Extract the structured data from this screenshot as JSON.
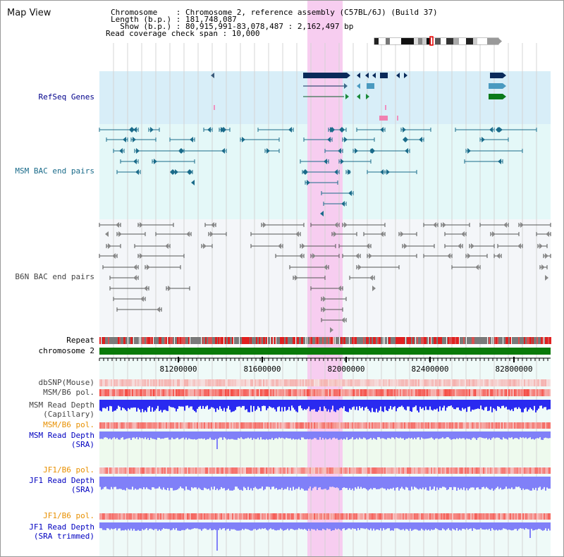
{
  "app": {
    "title": "Map View"
  },
  "info": {
    "chromosome_line": "Chromosome    : Chromosome 2, reference assembly (C57BL/6J) (Build 37)",
    "length_line": "Length (b.p.) : 181,748,087",
    "show_line": "  Show (b.p.) : 80,915,991-83,078,487 : 2,162,497 bp",
    "coverage_line": "Read coverage check span : 10,000"
  },
  "tracks": {
    "refseq": {
      "label": "RefSeq Genes",
      "color": "#00008b"
    },
    "msm_bac": {
      "label": "MSM BAC end pairs",
      "color": "#1a6b8a"
    },
    "b6n_bac": {
      "label": "B6N BAC end pairs",
      "color": "#444444"
    },
    "repeat": {
      "label": "Repeat"
    },
    "chromosome": {
      "label": "chromosome 2"
    },
    "dbsnp": {
      "label": "dbSNP(Mouse)"
    },
    "msm_b6_pol": {
      "label": "MSM/B6 pol."
    },
    "msm_depth_cap": {
      "label1": "MSM Read Depth",
      "label2": "(Capillary)"
    },
    "msm_b6_pol2": {
      "label": "MSM/B6 pol."
    },
    "msm_depth_sra": {
      "label1": "MSM Read Depth",
      "label2": "(SRA)"
    },
    "jf1_b6_pol": {
      "label": "JF1/B6 pol."
    },
    "jf1_depth_sra": {
      "label1": "JF1 Read Depth",
      "label2": "(SRA)"
    },
    "jf1_b6_pol2": {
      "label": "JF1/B6 pol."
    },
    "jf1_depth_trim": {
      "label1": "JF1 Read Depth",
      "label2": "(SRA trimmed)"
    }
  },
  "axis": {
    "ticks": [
      "81200000",
      "81600000",
      "82000000",
      "82400000",
      "82800000"
    ]
  },
  "colors": {
    "highlight": "#f7cdf0",
    "refseq_bg": "#d8eef8",
    "msm_bg": "#e4f8f8",
    "b6n_bg": "#f4f6f9",
    "depth_blue": "#2a2af0",
    "depth_sra": "#8080f8",
    "pol_red": "#e02020",
    "chrom_green": "#0a7a0a"
  }
}
